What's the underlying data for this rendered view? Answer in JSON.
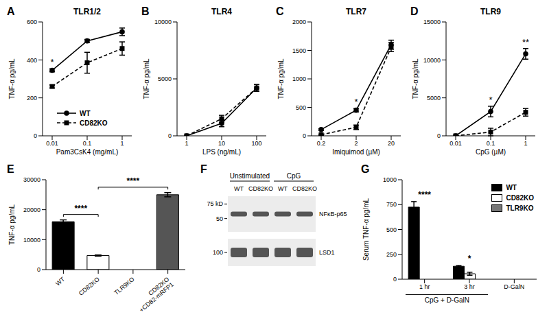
{
  "chart_data": [
    {
      "panel": "A",
      "type": "line",
      "title": "TLR1/2",
      "x_label": "Pam3CsK4 (mg/mL)",
      "y_label": "TNF-α pg/mL",
      "categories": [
        "0.01",
        "0.1",
        "1"
      ],
      "ylim": [
        0,
        600
      ],
      "yticks": [
        0,
        200,
        400,
        600
      ],
      "legend": "lower center",
      "series": [
        {
          "name": "WT",
          "color": "#000000",
          "marker": "circle",
          "line_style": "solid",
          "values": [
            345,
            500,
            548
          ],
          "errors": [
            8,
            8,
            20
          ]
        },
        {
          "name": "CD82KO",
          "color": "#000000",
          "marker": "square",
          "line_style": "dashed",
          "values": [
            260,
            385,
            460
          ],
          "errors": [
            8,
            55,
            35
          ]
        }
      ],
      "annotations": [
        {
          "text": "*",
          "x": "0.01"
        }
      ]
    },
    {
      "panel": "B",
      "type": "line",
      "title": "TLR4",
      "x_label": "LPS (ng/mL)",
      "y_label": "TNF-α pg/mL",
      "categories": [
        "1",
        "10",
        "100"
      ],
      "ylim": [
        0,
        10000
      ],
      "yticks": [
        0,
        5000,
        10000
      ],
      "series": [
        {
          "name": "WT",
          "color": "#000000",
          "marker": "circle",
          "line_style": "solid",
          "values": [
            0,
            1100,
            4200
          ],
          "errors": [
            0,
            300,
            300
          ]
        },
        {
          "name": "CD82KO",
          "color": "#000000",
          "marker": "square",
          "line_style": "dashed",
          "values": [
            0,
            1500,
            4200
          ],
          "errors": [
            0,
            300,
            300
          ]
        }
      ],
      "annotations": []
    },
    {
      "panel": "C",
      "type": "line",
      "title": "TLR7",
      "x_label": "Imiquimod (µM)",
      "y_label": "TNF-α pg/mL",
      "categories": [
        "0.2",
        "2",
        "20"
      ],
      "ylim": [
        0,
        2000
      ],
      "yticks": [
        0,
        500,
        1000,
        1500,
        2000
      ],
      "series": [
        {
          "name": "WT",
          "color": "#000000",
          "marker": "circle",
          "line_style": "solid",
          "values": [
            110,
            450,
            1600
          ],
          "errors": [
            15,
            30,
            80
          ]
        },
        {
          "name": "CD82KO",
          "color": "#000000",
          "marker": "square",
          "line_style": "dashed",
          "values": [
            20,
            150,
            1560
          ],
          "errors": [
            10,
            40,
            80
          ]
        }
      ],
      "annotations": [
        {
          "text": "*",
          "x": "2"
        }
      ]
    },
    {
      "panel": "D",
      "type": "line",
      "title": "TLR9",
      "x_label": "CpG (µM)",
      "y_label": "TNF-α pg/mL",
      "categories": [
        "0.01",
        "0.1",
        "1"
      ],
      "ylim": [
        0,
        15000
      ],
      "yticks": [
        0,
        5000,
        10000,
        15000
      ],
      "series": [
        {
          "name": "WT",
          "color": "#000000",
          "marker": "circle",
          "line_style": "solid",
          "values": [
            0,
            3200,
            10800
          ],
          "errors": [
            0,
            700,
            700
          ]
        },
        {
          "name": "CD82KO",
          "color": "#000000",
          "marker": "square",
          "line_style": "dashed",
          "values": [
            0,
            500,
            3100
          ],
          "errors": [
            0,
            500,
            500
          ]
        }
      ],
      "annotations": [
        {
          "text": "*",
          "x": "0.1"
        },
        {
          "text": "**",
          "x": "1"
        }
      ]
    },
    {
      "panel": "E",
      "type": "bar",
      "y_label": "TNF-α pg/mL",
      "categories": [
        "WT",
        "CD82KO",
        "TLR9KO",
        "CD82KO\n+CD82-mRFP1"
      ],
      "values": [
        16000,
        4700,
        0,
        25000
      ],
      "errors": [
        600,
        200,
        0,
        700
      ],
      "colors": [
        "#000000",
        "#ffffff",
        "#888888",
        "#555555"
      ],
      "ylim": [
        0,
        30000
      ],
      "yticks": [
        0,
        10000,
        20000,
        30000
      ],
      "annotations": [
        {
          "text": "****",
          "from": "WT",
          "to": "CD82KO"
        },
        {
          "text": "****",
          "from": "CD82KO",
          "to": "CD82KO\n+CD82-mRFP1"
        }
      ]
    },
    {
      "panel": "F",
      "type": "blot",
      "groups": [
        {
          "label": "Unstimulated",
          "lanes": [
            "WT",
            "CD82KO"
          ]
        },
        {
          "label": "CpG",
          "lanes": [
            "WT",
            "CD82KO"
          ]
        }
      ],
      "bands": [
        {
          "label": "NFκB-p65",
          "markers": [
            {
              "value": 75,
              "label": "75 kD"
            },
            {
              "value": 50,
              "label": "50"
            }
          ]
        },
        {
          "label": "LSD1",
          "markers": [
            {
              "value": 100,
              "label": "100"
            }
          ]
        }
      ]
    },
    {
      "panel": "G",
      "type": "bar",
      "y_label": "Serum TNF-α pg/mL",
      "categories": [
        "1 hr",
        "3 hr",
        "D-GalN"
      ],
      "group_label": {
        "text": "CpG + D-GalN",
        "categories": [
          "1 hr",
          "3 hr"
        ]
      },
      "ylim": [
        0,
        1000
      ],
      "yticks": [
        0,
        250,
        500,
        750,
        1000
      ],
      "legend": "upper right",
      "series": [
        {
          "name": "WT",
          "color": "#000000",
          "values": [
            725,
            130,
            0
          ],
          "errors": [
            55,
            8,
            0
          ]
        },
        {
          "name": "CD82KO",
          "color": "#ffffff",
          "values": [
            0,
            55,
            0
          ],
          "errors": [
            0,
            15,
            0
          ]
        },
        {
          "name": "TLR9KO",
          "color": "#777777",
          "values": [
            0,
            0,
            0
          ],
          "errors": [
            0,
            0,
            0
          ]
        }
      ],
      "annotations": [
        {
          "text": "****",
          "x": "1 hr"
        },
        {
          "text": "*",
          "x": "3 hr"
        }
      ]
    }
  ]
}
